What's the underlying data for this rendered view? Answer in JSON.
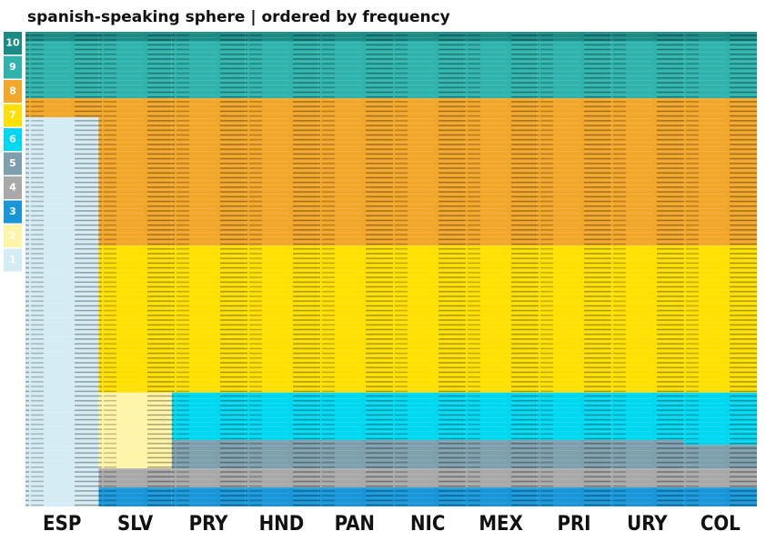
{
  "title": "spanish-speaking sphere | ordered by frequency",
  "legend": [
    {
      "level": 10,
      "color": "#1b8b86"
    },
    {
      "level": 9,
      "color": "#2fb3ac"
    },
    {
      "level": 8,
      "color": "#f2a62a"
    },
    {
      "level": 7,
      "color": "#ffe000"
    },
    {
      "level": 6,
      "color": "#00d8f2"
    },
    {
      "level": 5,
      "color": "#7e9fae"
    },
    {
      "level": 4,
      "color": "#a9a9a9"
    },
    {
      "level": 3,
      "color": "#1896d8"
    },
    {
      "level": 2,
      "color": "#fff4a8"
    },
    {
      "level": 1,
      "color": "#d4ecf4"
    }
  ],
  "columns": [
    {
      "name": "ESP",
      "segments": [
        {
          "level": 10,
          "rows": 2
        },
        {
          "level": 9,
          "rows": 12
        },
        {
          "level": 8,
          "rows": 4
        },
        {
          "level": 1,
          "rows": 82
        }
      ]
    },
    {
      "name": "SLV",
      "segments": [
        {
          "level": 10,
          "rows": 2
        },
        {
          "level": 9,
          "rows": 12
        },
        {
          "level": 8,
          "rows": 31
        },
        {
          "level": 7,
          "rows": 31
        },
        {
          "level": 2,
          "rows": 16
        },
        {
          "level": 4,
          "rows": 4
        },
        {
          "level": 3,
          "rows": 4
        }
      ]
    },
    {
      "name": "PRY",
      "segments": [
        {
          "level": 10,
          "rows": 2
        },
        {
          "level": 9,
          "rows": 12
        },
        {
          "level": 8,
          "rows": 31
        },
        {
          "level": 7,
          "rows": 31
        },
        {
          "level": 6,
          "rows": 10
        },
        {
          "level": 5,
          "rows": 6
        },
        {
          "level": 4,
          "rows": 4
        },
        {
          "level": 3,
          "rows": 4
        }
      ]
    },
    {
      "name": "HND",
      "segments": [
        {
          "level": 10,
          "rows": 2
        },
        {
          "level": 9,
          "rows": 12
        },
        {
          "level": 8,
          "rows": 31
        },
        {
          "level": 7,
          "rows": 31
        },
        {
          "level": 6,
          "rows": 10
        },
        {
          "level": 5,
          "rows": 6
        },
        {
          "level": 4,
          "rows": 4
        },
        {
          "level": 3,
          "rows": 4
        }
      ]
    },
    {
      "name": "PAN",
      "segments": [
        {
          "level": 10,
          "rows": 2
        },
        {
          "level": 9,
          "rows": 12
        },
        {
          "level": 8,
          "rows": 31
        },
        {
          "level": 7,
          "rows": 31
        },
        {
          "level": 6,
          "rows": 10
        },
        {
          "level": 5,
          "rows": 6
        },
        {
          "level": 4,
          "rows": 4
        },
        {
          "level": 3,
          "rows": 4
        }
      ]
    },
    {
      "name": "NIC",
      "segments": [
        {
          "level": 10,
          "rows": 2
        },
        {
          "level": 9,
          "rows": 12
        },
        {
          "level": 8,
          "rows": 31
        },
        {
          "level": 7,
          "rows": 31
        },
        {
          "level": 6,
          "rows": 10
        },
        {
          "level": 5,
          "rows": 6
        },
        {
          "level": 4,
          "rows": 4
        },
        {
          "level": 3,
          "rows": 4
        }
      ]
    },
    {
      "name": "MEX",
      "segments": [
        {
          "level": 10,
          "rows": 2
        },
        {
          "level": 9,
          "rows": 12
        },
        {
          "level": 8,
          "rows": 31
        },
        {
          "level": 7,
          "rows": 31
        },
        {
          "level": 6,
          "rows": 10
        },
        {
          "level": 5,
          "rows": 6
        },
        {
          "level": 4,
          "rows": 4
        },
        {
          "level": 3,
          "rows": 4
        }
      ]
    },
    {
      "name": "PRI",
      "segments": [
        {
          "level": 10,
          "rows": 2
        },
        {
          "level": 9,
          "rows": 12
        },
        {
          "level": 8,
          "rows": 31
        },
        {
          "level": 7,
          "rows": 31
        },
        {
          "level": 6,
          "rows": 10
        },
        {
          "level": 5,
          "rows": 6
        },
        {
          "level": 4,
          "rows": 4
        },
        {
          "level": 3,
          "rows": 4
        }
      ]
    },
    {
      "name": "URY",
      "segments": [
        {
          "level": 10,
          "rows": 2
        },
        {
          "level": 9,
          "rows": 12
        },
        {
          "level": 8,
          "rows": 31
        },
        {
          "level": 7,
          "rows": 31
        },
        {
          "level": 6,
          "rows": 10
        },
        {
          "level": 5,
          "rows": 6
        },
        {
          "level": 4,
          "rows": 4
        },
        {
          "level": 3,
          "rows": 4
        }
      ]
    },
    {
      "name": "COL",
      "segments": [
        {
          "level": 10,
          "rows": 2
        },
        {
          "level": 9,
          "rows": 12
        },
        {
          "level": 8,
          "rows": 31
        },
        {
          "level": 7,
          "rows": 31
        },
        {
          "level": 6,
          "rows": 11
        },
        {
          "level": 5,
          "rows": 5
        },
        {
          "level": 4,
          "rows": 4
        },
        {
          "level": 3,
          "rows": 4
        }
      ]
    }
  ]
}
